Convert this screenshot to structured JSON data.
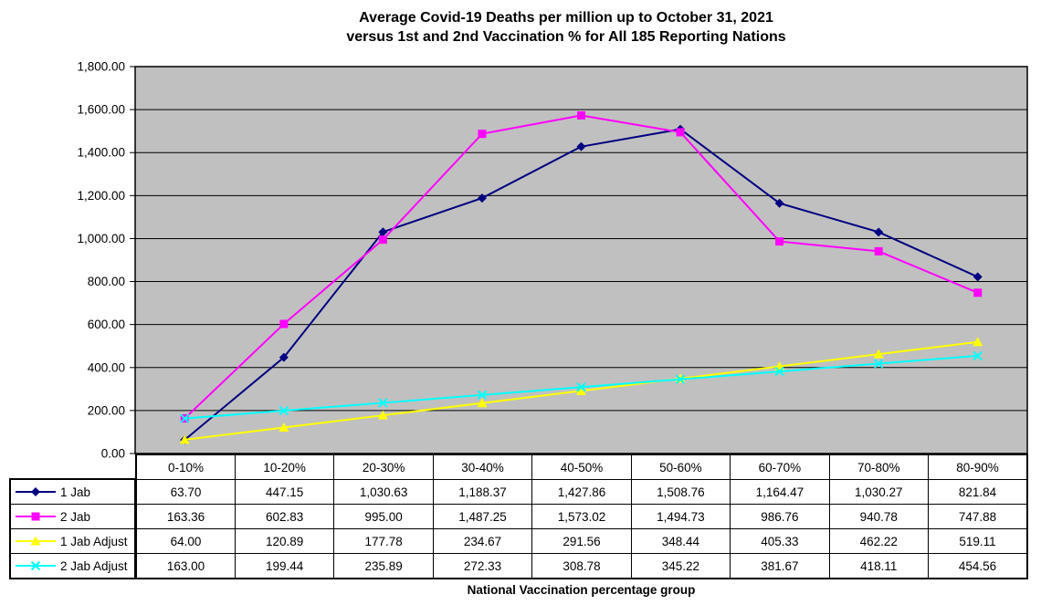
{
  "title": {
    "line1": "Average Covid-19 Deaths per million up to October 31, 2021",
    "line2": "versus 1st and 2nd Vaccination % for All 185 Reporting Nations"
  },
  "xlabel": "National Vaccination percentage group",
  "chart_data": {
    "type": "line",
    "title": "Average Covid-19 Deaths per million up to October 31, 2021 versus 1st and 2nd Vaccination % for All 185 Reporting Nations",
    "xlabel": "National Vaccination percentage group",
    "ylabel": "",
    "categories": [
      "0-10%",
      "10-20%",
      "20-30%",
      "30-40%",
      "40-50%",
      "50-60%",
      "60-70%",
      "70-80%",
      "80-90%"
    ],
    "ylim": [
      0,
      1800
    ],
    "y_step": 200,
    "y_tick_labels": [
      "0.00",
      "200.00",
      "400.00",
      "600.00",
      "800.00",
      "1,000.00",
      "1,200.00",
      "1,400.00",
      "1,600.00",
      "1,800.00"
    ],
    "grid": true,
    "legend_position": "data-table-left",
    "plot_bg_color": "#c0c0c0",
    "grid_color": "#000000",
    "series": [
      {
        "name": "1 Jab",
        "color": "#000080",
        "marker": "diamond",
        "values": [
          63.7,
          447.15,
          1030.63,
          1188.37,
          1427.86,
          1508.76,
          1164.47,
          1030.27,
          821.84
        ],
        "display": [
          "63.70",
          "447.15",
          "1,030.63",
          "1,188.37",
          "1,427.86",
          "1,508.76",
          "1,164.47",
          "1,030.27",
          "821.84"
        ]
      },
      {
        "name": "2 Jab",
        "color": "#ff00ff",
        "marker": "square",
        "values": [
          163.36,
          602.83,
          995.0,
          1487.25,
          1573.02,
          1494.73,
          986.76,
          940.78,
          747.88
        ],
        "display": [
          "163.36",
          "602.83",
          "995.00",
          "1,487.25",
          "1,573.02",
          "1,494.73",
          "986.76",
          "940.78",
          "747.88"
        ]
      },
      {
        "name": "1 Jab Adjust",
        "color": "#ffff00",
        "marker": "triangle",
        "values": [
          64.0,
          120.89,
          177.78,
          234.67,
          291.56,
          348.44,
          405.33,
          462.22,
          519.11
        ],
        "display": [
          "64.00",
          "120.89",
          "177.78",
          "234.67",
          "291.56",
          "348.44",
          "405.33",
          "462.22",
          "519.11"
        ]
      },
      {
        "name": "2 Jab Adjust",
        "color": "#00ffff",
        "marker": "x",
        "values": [
          163.0,
          199.44,
          235.89,
          272.33,
          308.78,
          345.22,
          381.67,
          418.11,
          454.56
        ],
        "display": [
          "163.00",
          "199.44",
          "235.89",
          "272.33",
          "308.78",
          "345.22",
          "381.67",
          "418.11",
          "454.56"
        ]
      }
    ]
  }
}
